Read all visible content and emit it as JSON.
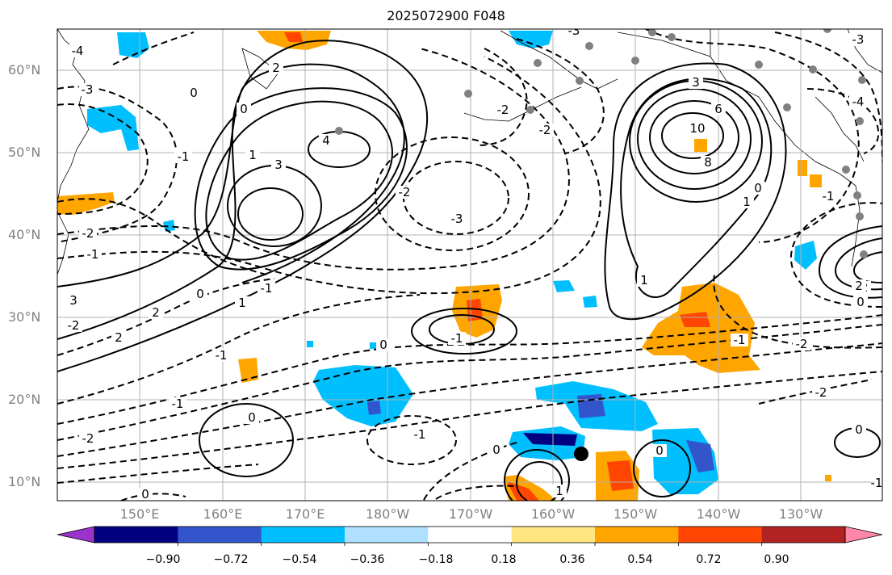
{
  "title": "2025072900 F048",
  "latitude_labels": [
    "60°N",
    "50°N",
    "40°N",
    "30°N",
    "20°N",
    "10°N"
  ],
  "longitude_labels": [
    "150°E",
    "160°E",
    "170°E",
    "180°W",
    "170°W",
    "160°W",
    "150°W",
    "140°W",
    "130°W"
  ],
  "colorbar": {
    "ticks": [
      "−0.90",
      "−0.72",
      "−0.54",
      "−0.36",
      "−0.18",
      "0.18",
      "0.36",
      "0.54",
      "0.72",
      "0.90"
    ],
    "colors": [
      "#9933cc",
      "#000080",
      "#3355cc",
      "#00bfff",
      "#b0e0ff",
      "#ffffff",
      "#ffe680",
      "#ffa500",
      "#ff4500",
      "#b22222",
      "#ff88aa"
    ]
  },
  "contour_labels": {
    "l0": "-4",
    "l1": "-3",
    "l2": "0",
    "l3": "2",
    "l4": "0",
    "l5": "3",
    "l6": "4",
    "l7": "-2",
    "l8": "-1",
    "l9": "0",
    "l10": "-1",
    "l11": "-2",
    "l12": "-3",
    "l13": "-2",
    "l14": "3",
    "l15": "6",
    "l16": "10",
    "l17": "8",
    "l18": "1",
    "l19": "-1",
    "l20": "-4",
    "l21": "-3",
    "l22": "-1",
    "l23": "1",
    "l24": "2",
    "l25": "0",
    "l26": "0",
    "l27": "-1",
    "l28": "-2",
    "l29": "0",
    "l30": "-2",
    "l31": "2",
    "l32": "-1",
    "l33": "-2",
    "l34": "0",
    "l35": "-1",
    "l36": "0",
    "l37": "-1",
    "l38": "-2",
    "l39": "-1",
    "l40": "1",
    "l41": "-2",
    "l42": "-1",
    "l43": "0",
    "l44": "0",
    "l45": "1",
    "l46": "1",
    "l47": "0",
    "l48": "3",
    "l49": "2",
    "l50": "-3",
    "l51": "-2"
  }
}
